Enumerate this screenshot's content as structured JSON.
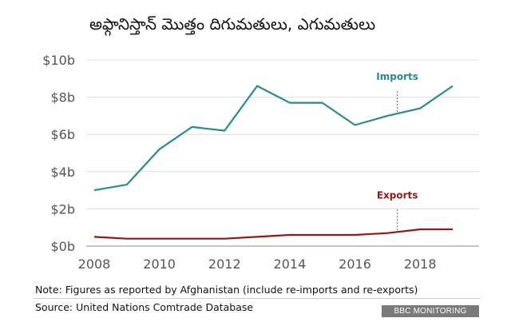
{
  "title": "అఫ్గానిస్తాన్ మొత్తం దిగుమతులు, ఎగుమతులు",
  "note": "Note: Figures as reported by Afghanistan (include re-imports and re-exports)",
  "source": "Source: United Nations Comtrade Database",
  "badge": "BBC MONITORING",
  "chart_data": {
    "type": "line",
    "title": "అఫ్గానిస్తాన్ మొత్తం దిగుమతులు, ఎగుమతులు",
    "xlabel": "",
    "ylabel": "",
    "x": [
      2008,
      2009,
      2010,
      2011,
      2012,
      2013,
      2014,
      2015,
      2016,
      2017,
      2018,
      2019
    ],
    "series": [
      {
        "name": "Imports",
        "color": "#2b8a8a",
        "values": [
          3.0,
          3.3,
          5.2,
          6.4,
          6.2,
          8.6,
          7.7,
          7.7,
          6.5,
          7.0,
          7.4,
          8.6
        ]
      },
      {
        "name": "Exports",
        "color": "#8e1b1b",
        "values": [
          0.5,
          0.4,
          0.4,
          0.4,
          0.4,
          0.5,
          0.6,
          0.6,
          0.6,
          0.7,
          0.9,
          0.9
        ]
      }
    ],
    "xticks": [
      2008,
      2010,
      2012,
      2014,
      2016,
      2018
    ],
    "xtick_labels": [
      "2008",
      "2010",
      "2012",
      "2014",
      "2016",
      "2018"
    ],
    "yticks": [
      0,
      2,
      4,
      6,
      8,
      10
    ],
    "ytick_labels": [
      "$0b",
      "$2b",
      "$4b",
      "$6b",
      "$8b",
      "$10b"
    ],
    "xlim": [
      2008,
      2019
    ],
    "ylim": [
      0,
      10
    ],
    "grid": true,
    "annotations": [
      {
        "series": "Imports",
        "label": "Imports",
        "x": 2017.3
      },
      {
        "series": "Exports",
        "label": "Exports",
        "x": 2017.3
      }
    ]
  }
}
